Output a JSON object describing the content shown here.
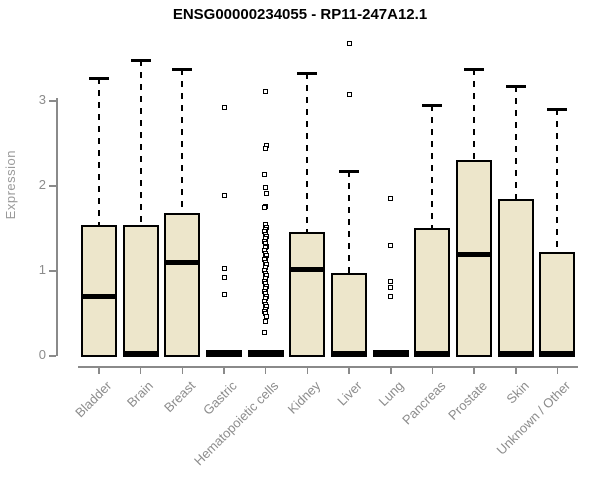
{
  "chart_data": {
    "type": "boxplot",
    "title": "ENSG00000234055 - RP11-247A12.1",
    "ylabel": "Expression",
    "xlabel": "",
    "yticks": [
      0,
      1,
      2,
      3
    ],
    "ylim": [
      0,
      3.75
    ],
    "grid": false,
    "legend": "none",
    "box_fill_color": "#ede6cb",
    "box_border_color": "#000000",
    "axis_color": "#8a8a8a",
    "tick_text_color": "#8c8c8c",
    "categories": [
      "Bladder",
      "Brain",
      "Breast",
      "Gastric",
      "Hematopoietic cells",
      "Kidney",
      "Liver",
      "Lung",
      "Pancreas",
      "Prostate",
      "Skin",
      "Unknown / Other"
    ],
    "boxes": [
      {
        "category": "Bladder",
        "q1": 0,
        "median": 0.7,
        "q3": 1.53,
        "whisker_low": 0,
        "whisker_high": 3.26,
        "outliers": []
      },
      {
        "category": "Brain",
        "q1": 0,
        "median": 0.02,
        "q3": 1.53,
        "whisker_low": 0,
        "whisker_high": 3.47,
        "outliers": []
      },
      {
        "category": "Breast",
        "q1": 0,
        "median": 1.09,
        "q3": 1.67,
        "whisker_low": 0,
        "whisker_high": 3.36,
        "outliers": []
      },
      {
        "category": "Gastric",
        "q1": 0,
        "median": 0.01,
        "q3": 0.02,
        "whisker_low": 0,
        "whisker_high": 0.03,
        "outliers": [
          2.91,
          1.88,
          1.02,
          0.91,
          0.71
        ]
      },
      {
        "category": "Hematopoietic cells",
        "q1": 0,
        "median": 0.01,
        "q3": 0.02,
        "whisker_low": 0,
        "whisker_high": 0.03,
        "outliers": [
          3.1,
          2.47,
          2.43,
          2.12,
          1.97,
          1.9,
          1.75,
          1.73,
          1.53,
          1.5,
          1.48,
          1.45,
          1.42,
          1.4,
          1.37,
          1.34,
          1.31,
          1.28,
          1.26,
          1.23,
          1.2,
          1.17,
          1.14,
          1.12,
          1.09,
          1.06,
          1.03,
          0.99,
          0.96,
          0.93,
          0.9,
          0.87,
          0.84,
          0.81,
          0.78,
          0.75,
          0.72,
          0.69,
          0.66,
          0.63,
          0.6,
          0.57,
          0.54,
          0.51,
          0.49,
          0.45,
          0.39,
          0.26
        ]
      },
      {
        "category": "Kidney",
        "q1": 0,
        "median": 1.01,
        "q3": 1.45,
        "whisker_low": 0,
        "whisker_high": 3.32,
        "outliers": []
      },
      {
        "category": "Liver",
        "q1": 0,
        "median": 0.02,
        "q3": 0.96,
        "whisker_low": 0,
        "whisker_high": 2.17,
        "outliers": [
          3.67,
          3.07
        ]
      },
      {
        "category": "Lung",
        "q1": 0,
        "median": 0.01,
        "q3": 0.02,
        "whisker_low": 0,
        "whisker_high": 0.03,
        "outliers": [
          1.84,
          1.29,
          0.86,
          0.79,
          0.69
        ]
      },
      {
        "category": "Pancreas",
        "q1": 0,
        "median": 0.02,
        "q3": 1.49,
        "whisker_low": 0,
        "whisker_high": 2.94,
        "outliers": []
      },
      {
        "category": "Prostate",
        "q1": 0,
        "median": 1.19,
        "q3": 2.29,
        "whisker_low": 0,
        "whisker_high": 3.36,
        "outliers": []
      },
      {
        "category": "Skin",
        "q1": 0,
        "median": 0.02,
        "q3": 1.84,
        "whisker_low": 0,
        "whisker_high": 3.16,
        "outliers": []
      },
      {
        "category": "Unknown / Other",
        "q1": 0,
        "median": 0.02,
        "q3": 1.21,
        "whisker_low": 0,
        "whisker_high": 2.89,
        "outliers": []
      }
    ]
  }
}
